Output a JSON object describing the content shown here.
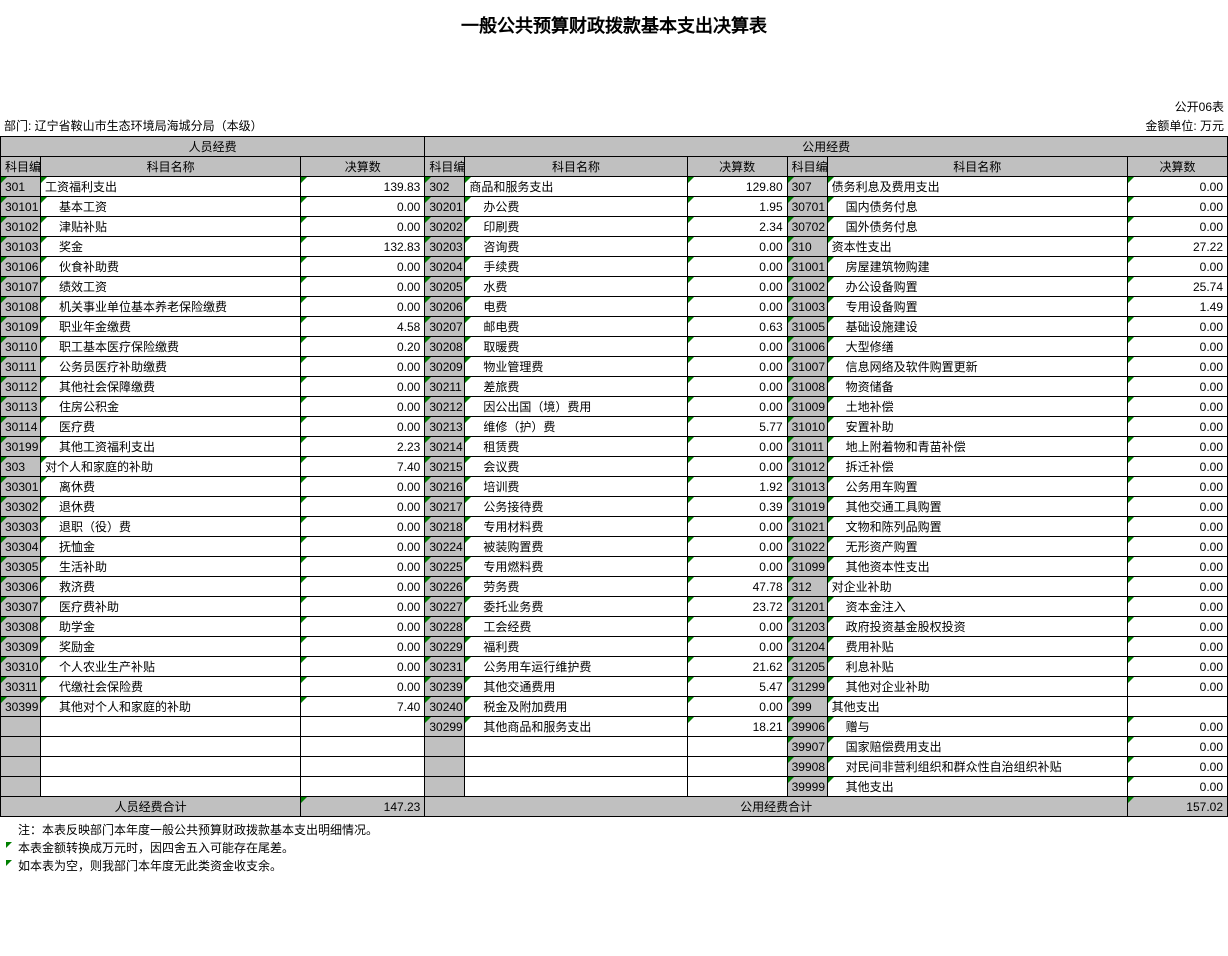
{
  "title": "一般公共预算财政拨款基本支出决算表",
  "table_no": "公开06表",
  "dept": "部门: 辽宁省鞍山市生态环境局海城分局（本级）",
  "unit": "金额单位: 万元",
  "group_a": "人员经费",
  "group_b": "公用经费",
  "h_code": "科目编码",
  "h_name": "科目名称",
  "h_val": "决算数",
  "rows": [
    {
      "a": [
        "301",
        "工资福利支出",
        "139.83",
        0
      ],
      "b": [
        "302",
        "商品和服务支出",
        "129.80",
        0
      ],
      "c": [
        "307",
        "债务利息及费用支出",
        "0.00",
        0
      ]
    },
    {
      "a": [
        "30101",
        "基本工资",
        "0.00",
        1
      ],
      "b": [
        "30201",
        "办公费",
        "1.95",
        1
      ],
      "c": [
        "30701",
        "国内债务付息",
        "0.00",
        1
      ]
    },
    {
      "a": [
        "30102",
        "津贴补贴",
        "0.00",
        1
      ],
      "b": [
        "30202",
        "印刷费",
        "2.34",
        1
      ],
      "c": [
        "30702",
        "国外债务付息",
        "0.00",
        1
      ]
    },
    {
      "a": [
        "30103",
        "奖金",
        "132.83",
        1
      ],
      "b": [
        "30203",
        "咨询费",
        "0.00",
        1
      ],
      "c": [
        "310",
        "资本性支出",
        "27.22",
        0
      ]
    },
    {
      "a": [
        "30106",
        "伙食补助费",
        "0.00",
        1
      ],
      "b": [
        "30204",
        "手续费",
        "0.00",
        1
      ],
      "c": [
        "31001",
        "房屋建筑物购建",
        "0.00",
        1
      ]
    },
    {
      "a": [
        "30107",
        "绩效工资",
        "0.00",
        1
      ],
      "b": [
        "30205",
        "水费",
        "0.00",
        1
      ],
      "c": [
        "31002",
        "办公设备购置",
        "25.74",
        1
      ]
    },
    {
      "a": [
        "30108",
        "机关事业单位基本养老保险缴费",
        "0.00",
        1
      ],
      "b": [
        "30206",
        "电费",
        "0.00",
        1
      ],
      "c": [
        "31003",
        "专用设备购置",
        "1.49",
        1
      ]
    },
    {
      "a": [
        "30109",
        "职业年金缴费",
        "4.58",
        1
      ],
      "b": [
        "30207",
        "邮电费",
        "0.63",
        1
      ],
      "c": [
        "31005",
        "基础设施建设",
        "0.00",
        1
      ]
    },
    {
      "a": [
        "30110",
        "职工基本医疗保险缴费",
        "0.20",
        1
      ],
      "b": [
        "30208",
        "取暖费",
        "0.00",
        1
      ],
      "c": [
        "31006",
        "大型修缮",
        "0.00",
        1
      ]
    },
    {
      "a": [
        "30111",
        "公务员医疗补助缴费",
        "0.00",
        1
      ],
      "b": [
        "30209",
        "物业管理费",
        "0.00",
        1
      ],
      "c": [
        "31007",
        "信息网络及软件购置更新",
        "0.00",
        1
      ]
    },
    {
      "a": [
        "30112",
        "其他社会保障缴费",
        "0.00",
        1
      ],
      "b": [
        "30211",
        "差旅费",
        "0.00",
        1
      ],
      "c": [
        "31008",
        "物资储备",
        "0.00",
        1
      ]
    },
    {
      "a": [
        "30113",
        "住房公积金",
        "0.00",
        1
      ],
      "b": [
        "30212",
        "因公出国（境）费用",
        "0.00",
        1
      ],
      "c": [
        "31009",
        "土地补偿",
        "0.00",
        1
      ]
    },
    {
      "a": [
        "30114",
        "医疗费",
        "0.00",
        1
      ],
      "b": [
        "30213",
        "维修（护）费",
        "5.77",
        1
      ],
      "c": [
        "31010",
        "安置补助",
        "0.00",
        1
      ]
    },
    {
      "a": [
        "30199",
        "其他工资福利支出",
        "2.23",
        1
      ],
      "b": [
        "30214",
        "租赁费",
        "0.00",
        1
      ],
      "c": [
        "31011",
        "地上附着物和青苗补偿",
        "0.00",
        1
      ]
    },
    {
      "a": [
        "303",
        "对个人和家庭的补助",
        "7.40",
        0
      ],
      "b": [
        "30215",
        "会议费",
        "0.00",
        1
      ],
      "c": [
        "31012",
        "拆迁补偿",
        "0.00",
        1
      ]
    },
    {
      "a": [
        "30301",
        "离休费",
        "0.00",
        1
      ],
      "b": [
        "30216",
        "培训费",
        "1.92",
        1
      ],
      "c": [
        "31013",
        "公务用车购置",
        "0.00",
        1
      ]
    },
    {
      "a": [
        "30302",
        "退休费",
        "0.00",
        1
      ],
      "b": [
        "30217",
        "公务接待费",
        "0.39",
        1
      ],
      "c": [
        "31019",
        "其他交通工具购置",
        "0.00",
        1
      ]
    },
    {
      "a": [
        "30303",
        "退职（役）费",
        "0.00",
        1
      ],
      "b": [
        "30218",
        "专用材料费",
        "0.00",
        1
      ],
      "c": [
        "31021",
        "文物和陈列品购置",
        "0.00",
        1
      ]
    },
    {
      "a": [
        "30304",
        "抚恤金",
        "0.00",
        1
      ],
      "b": [
        "30224",
        "被装购置费",
        "0.00",
        1
      ],
      "c": [
        "31022",
        "无形资产购置",
        "0.00",
        1
      ]
    },
    {
      "a": [
        "30305",
        "生活补助",
        "0.00",
        1
      ],
      "b": [
        "30225",
        "专用燃料费",
        "0.00",
        1
      ],
      "c": [
        "31099",
        "其他资本性支出",
        "0.00",
        1
      ]
    },
    {
      "a": [
        "30306",
        "救济费",
        "0.00",
        1
      ],
      "b": [
        "30226",
        "劳务费",
        "47.78",
        1
      ],
      "c": [
        "312",
        "对企业补助",
        "0.00",
        0
      ]
    },
    {
      "a": [
        "30307",
        "医疗费补助",
        "0.00",
        1
      ],
      "b": [
        "30227",
        "委托业务费",
        "23.72",
        1
      ],
      "c": [
        "31201",
        "资本金注入",
        "0.00",
        1
      ]
    },
    {
      "a": [
        "30308",
        "助学金",
        "0.00",
        1
      ],
      "b": [
        "30228",
        "工会经费",
        "0.00",
        1
      ],
      "c": [
        "31203",
        "政府投资基金股权投资",
        "0.00",
        1
      ]
    },
    {
      "a": [
        "30309",
        "奖励金",
        "0.00",
        1
      ],
      "b": [
        "30229",
        "福利费",
        "0.00",
        1
      ],
      "c": [
        "31204",
        "费用补贴",
        "0.00",
        1
      ]
    },
    {
      "a": [
        "30310",
        "个人农业生产补贴",
        "0.00",
        1
      ],
      "b": [
        "30231",
        "公务用车运行维护费",
        "21.62",
        1
      ],
      "c": [
        "31205",
        "利息补贴",
        "0.00",
        1
      ]
    },
    {
      "a": [
        "30311",
        "代缴社会保险费",
        "0.00",
        1
      ],
      "b": [
        "30239",
        "其他交通费用",
        "5.47",
        1
      ],
      "c": [
        "31299",
        "其他对企业补助",
        "0.00",
        1
      ]
    },
    {
      "a": [
        "30399",
        "其他对个人和家庭的补助",
        "7.40",
        1
      ],
      "b": [
        "30240",
        "税金及附加费用",
        "0.00",
        1
      ],
      "c": [
        "399",
        "其他支出",
        "",
        0
      ]
    },
    {
      "a": [
        "",
        "",
        "",
        0
      ],
      "b": [
        "30299",
        "其他商品和服务支出",
        "18.21",
        1
      ],
      "c": [
        "39906",
        "赠与",
        "0.00",
        1
      ]
    },
    {
      "a": [
        "",
        "",
        "",
        0
      ],
      "b": [
        "",
        "",
        "",
        0
      ],
      "c": [
        "39907",
        "国家赔偿费用支出",
        "0.00",
        1
      ]
    },
    {
      "a": [
        "",
        "",
        "",
        0
      ],
      "b": [
        "",
        "",
        "",
        0
      ],
      "c": [
        "39908",
        "对民间非营利组织和群众性自治组织补贴",
        "0.00",
        1
      ]
    },
    {
      "a": [
        "",
        "",
        "",
        0
      ],
      "b": [
        "",
        "",
        "",
        0
      ],
      "c": [
        "39999",
        "其他支出",
        "0.00",
        1
      ]
    }
  ],
  "total_a_label": "人员经费合计",
  "total_a_val": "147.23",
  "total_b_label": "公用经费合计",
  "total_b_val": "157.02",
  "notes": [
    "注：本表反映部门本年度一般公共预算财政拨款基本支出明细情况。",
    "本表金额转换成万元时，因四舍五入可能存在尾差。",
    "如本表为空，则我部门本年度无此类资金收支余。"
  ],
  "style": {
    "tri_color": "#008000",
    "header_bg": "#c0c0c0",
    "border_color": "#000000",
    "font_size_body": 12,
    "font_size_title": 18
  }
}
